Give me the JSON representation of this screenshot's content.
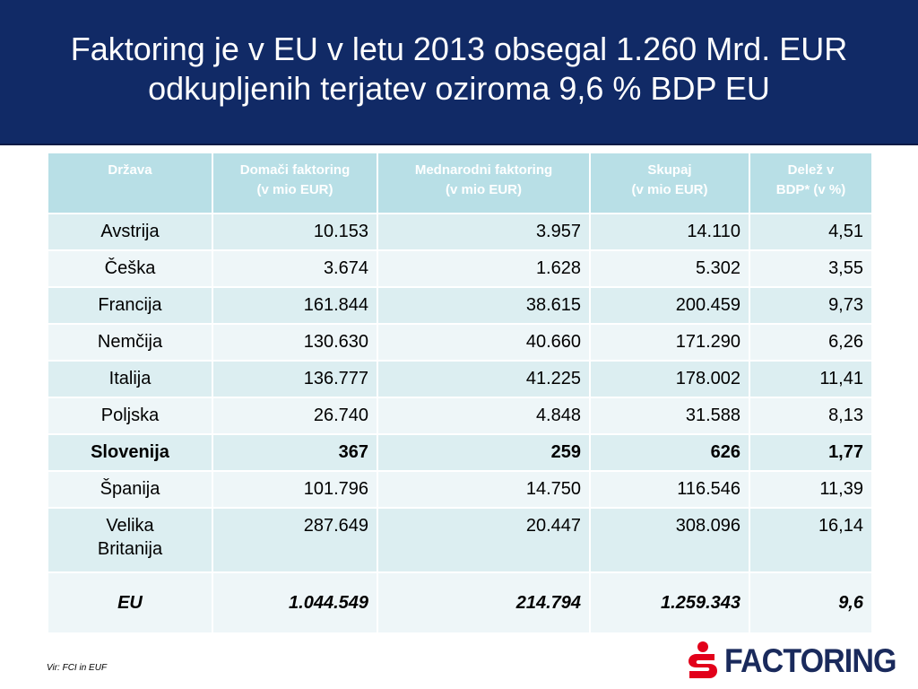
{
  "title": {
    "line1": "Faktoring je v EU v letu 2013 obsegal 1.260 Mrd. EUR",
    "line2": "odkupljenih terjatev oziroma 9,6 % BDP EU"
  },
  "table": {
    "headers": [
      {
        "line1": "Država",
        "line2": ""
      },
      {
        "line1": "Domači faktoring",
        "line2": "(v mio EUR)"
      },
      {
        "line1": "Mednarodni faktoring",
        "line2": "(v mio EUR)"
      },
      {
        "line1": "Skupaj",
        "line2": "(v mio EUR)"
      },
      {
        "line1": "Delež v",
        "line2": "BDP* (v %)"
      }
    ],
    "rows": [
      {
        "country": "Avstrija",
        "domestic": "10.153",
        "international": "3.957",
        "total": "14.110",
        "share": "4,51"
      },
      {
        "country": "Češka",
        "domestic": "3.674",
        "international": "1.628",
        "total": "5.302",
        "share": "3,55"
      },
      {
        "country": "Francija",
        "domestic": "161.844",
        "international": "38.615",
        "total": "200.459",
        "share": "9,73"
      },
      {
        "country": "Nemčija",
        "domestic": "130.630",
        "international": "40.660",
        "total": "171.290",
        "share": "6,26"
      },
      {
        "country": "Italija",
        "domestic": "136.777",
        "international": "41.225",
        "total": "178.002",
        "share": "11,41"
      },
      {
        "country": "Poljska",
        "domestic": "26.740",
        "international": "4.848",
        "total": "31.588",
        "share": "8,13"
      },
      {
        "country": "Slovenija",
        "domestic": "367",
        "international": "259",
        "total": "626",
        "share": "1,77"
      },
      {
        "country": "Španija",
        "domestic": "101.796",
        "international": "14.750",
        "total": "116.546",
        "share": "11,39"
      },
      {
        "country_line1": "Velika",
        "country_line2": "Britanija",
        "domestic": "287.649",
        "international": "20.447",
        "total": "308.096",
        "share": "16,14"
      },
      {
        "country": "EU",
        "domestic": "1.044.549",
        "international": "214.794",
        "total": "1.259.343",
        "share": "9,6"
      }
    ]
  },
  "source": "Vir: FCI in EUF",
  "logo": {
    "text": "FACTORING",
    "icon": "s-bank-logo-icon",
    "colors": {
      "icon": "#e2001a",
      "text": "#1a2a5c"
    }
  },
  "colors": {
    "title_bg": "#112a66",
    "header_bg": "#b8dfe6",
    "row_odd": "#dceef1",
    "row_even": "#eef6f8"
  }
}
